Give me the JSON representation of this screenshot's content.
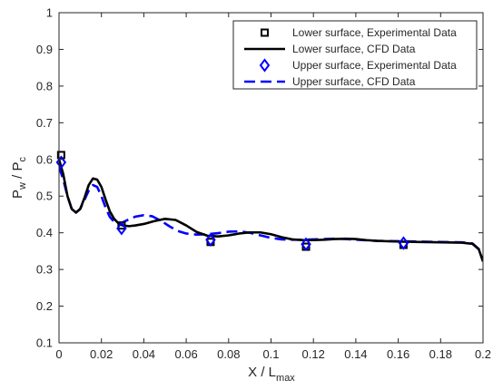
{
  "chart_data": {
    "type": "line",
    "xlabel": {
      "main": "X / L",
      "sub": "max"
    },
    "ylabel": {
      "p": "P",
      "w": "w",
      "slash": " / P",
      "c": "c"
    },
    "xlim": [
      0,
      0.2
    ],
    "ylim": [
      0.1,
      1
    ],
    "grid": false,
    "legend_position": "top-right",
    "x_ticks": [
      "0",
      "0.02",
      "0.04",
      "0.06",
      "0.08",
      "0.1",
      "0.12",
      "0.14",
      "0.16",
      "0.18",
      "0.2"
    ],
    "y_ticks": [
      "0.1",
      "0.2",
      "0.3",
      "0.4",
      "0.5",
      "0.6",
      "0.7",
      "0.8",
      "0.9",
      "1"
    ],
    "series": [
      {
        "name": "Lower surface, Experimental Data",
        "kind": "marker",
        "marker": "square",
        "color": "#000000",
        "points": [
          [
            0.001,
            0.612
          ],
          [
            0.0295,
            0.42
          ],
          [
            0.0715,
            0.375
          ],
          [
            0.1165,
            0.362
          ],
          [
            0.1625,
            0.367
          ]
        ]
      },
      {
        "name": "Lower surface, CFD Data",
        "kind": "line",
        "dash": "solid",
        "color": "#000000",
        "points": [
          [
            0,
            0.6
          ],
          [
            0.002,
            0.56
          ],
          [
            0.004,
            0.5
          ],
          [
            0.006,
            0.465
          ],
          [
            0.008,
            0.455
          ],
          [
            0.01,
            0.465
          ],
          [
            0.012,
            0.495
          ],
          [
            0.014,
            0.53
          ],
          [
            0.016,
            0.548
          ],
          [
            0.018,
            0.545
          ],
          [
            0.02,
            0.525
          ],
          [
            0.022,
            0.49
          ],
          [
            0.024,
            0.458
          ],
          [
            0.026,
            0.438
          ],
          [
            0.028,
            0.426
          ],
          [
            0.03,
            0.42
          ],
          [
            0.033,
            0.418
          ],
          [
            0.036,
            0.42
          ],
          [
            0.04,
            0.424
          ],
          [
            0.045,
            0.432
          ],
          [
            0.05,
            0.438
          ],
          [
            0.055,
            0.435
          ],
          [
            0.06,
            0.42
          ],
          [
            0.065,
            0.402
          ],
          [
            0.07,
            0.392
          ],
          [
            0.075,
            0.39
          ],
          [
            0.08,
            0.393
          ],
          [
            0.085,
            0.398
          ],
          [
            0.09,
            0.401
          ],
          [
            0.095,
            0.401
          ],
          [
            0.1,
            0.396
          ],
          [
            0.105,
            0.388
          ],
          [
            0.11,
            0.382
          ],
          [
            0.115,
            0.38
          ],
          [
            0.12,
            0.38
          ],
          [
            0.125,
            0.381
          ],
          [
            0.13,
            0.383
          ],
          [
            0.135,
            0.384
          ],
          [
            0.14,
            0.383
          ],
          [
            0.145,
            0.38
          ],
          [
            0.15,
            0.378
          ],
          [
            0.16,
            0.376
          ],
          [
            0.17,
            0.375
          ],
          [
            0.18,
            0.374
          ],
          [
            0.19,
            0.373
          ],
          [
            0.195,
            0.37
          ],
          [
            0.198,
            0.355
          ],
          [
            0.2,
            0.322
          ]
        ]
      },
      {
        "name": "Upper surface, Experimental Data",
        "kind": "marker",
        "marker": "diamond",
        "color": "#0000FF",
        "points": [
          [
            0.001,
            0.592
          ],
          [
            0.0295,
            0.412
          ],
          [
            0.0715,
            0.381
          ],
          [
            0.1165,
            0.369
          ],
          [
            0.1625,
            0.372
          ]
        ]
      },
      {
        "name": "Upper surface, CFD Data",
        "kind": "line",
        "dash": "dashed",
        "color": "#0000FF",
        "points": [
          [
            0,
            0.58
          ],
          [
            0.002,
            0.545
          ],
          [
            0.004,
            0.5
          ],
          [
            0.006,
            0.465
          ],
          [
            0.008,
            0.455
          ],
          [
            0.01,
            0.465
          ],
          [
            0.012,
            0.49
          ],
          [
            0.014,
            0.515
          ],
          [
            0.016,
            0.53
          ],
          [
            0.018,
            0.525
          ],
          [
            0.02,
            0.5
          ],
          [
            0.022,
            0.468
          ],
          [
            0.024,
            0.443
          ],
          [
            0.026,
            0.43
          ],
          [
            0.028,
            0.425
          ],
          [
            0.03,
            0.428
          ],
          [
            0.033,
            0.437
          ],
          [
            0.036,
            0.444
          ],
          [
            0.04,
            0.448
          ],
          [
            0.044,
            0.445
          ],
          [
            0.048,
            0.433
          ],
          [
            0.052,
            0.418
          ],
          [
            0.056,
            0.405
          ],
          [
            0.06,
            0.398
          ],
          [
            0.065,
            0.395
          ],
          [
            0.07,
            0.396
          ],
          [
            0.075,
            0.399
          ],
          [
            0.08,
            0.403
          ],
          [
            0.085,
            0.404
          ],
          [
            0.09,
            0.4
          ],
          [
            0.095,
            0.393
          ],
          [
            0.1,
            0.386
          ],
          [
            0.105,
            0.382
          ],
          [
            0.11,
            0.381
          ],
          [
            0.115,
            0.381
          ],
          [
            0.12,
            0.382
          ],
          [
            0.125,
            0.383
          ],
          [
            0.13,
            0.384
          ],
          [
            0.135,
            0.383
          ],
          [
            0.14,
            0.381
          ],
          [
            0.15,
            0.378
          ],
          [
            0.16,
            0.377
          ],
          [
            0.17,
            0.376
          ],
          [
            0.18,
            0.375
          ],
          [
            0.19,
            0.374
          ],
          [
            0.195,
            0.371
          ],
          [
            0.198,
            0.356
          ],
          [
            0.2,
            0.322
          ]
        ]
      }
    ]
  }
}
